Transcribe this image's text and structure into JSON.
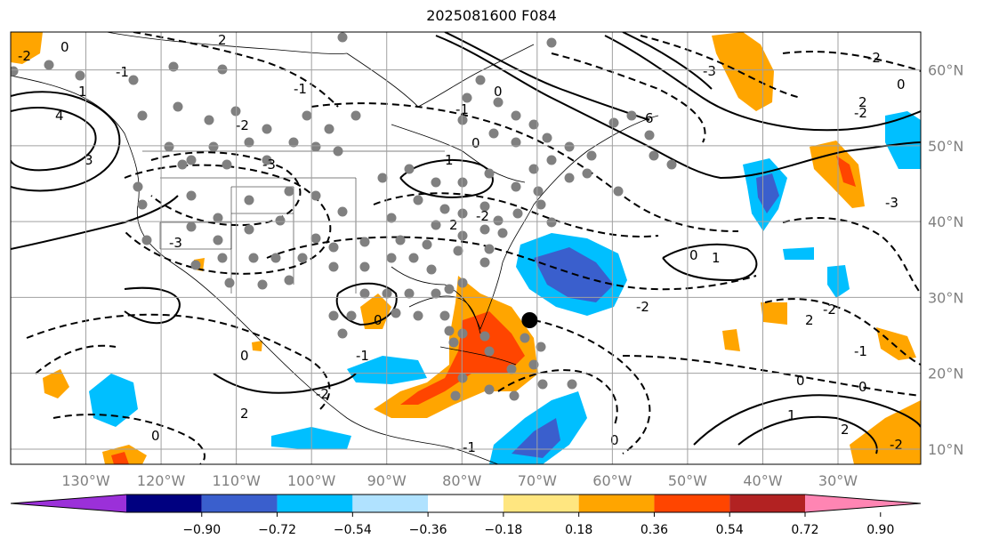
{
  "title": "2025081600 F084",
  "map": {
    "lon_range": [
      -140,
      -19
    ],
    "lat_range": [
      8,
      65
    ],
    "lon_ticks": [
      -130,
      -120,
      -110,
      -100,
      -90,
      -80,
      -70,
      -60,
      -50,
      -40,
      -30
    ],
    "lon_labels": [
      "130°W",
      "120°W",
      "110°W",
      "100°W",
      "90°W",
      "80°W",
      "70°W",
      "60°W",
      "50°W",
      "40°W",
      "30°W"
    ],
    "lat_ticks": [
      10,
      20,
      30,
      40,
      50,
      60
    ],
    "lat_labels": [
      "10°N",
      "20°N",
      "30°N",
      "40°N",
      "50°N",
      "60°N"
    ],
    "grid": true,
    "storm_marker": {
      "lon": -71,
      "lat": 27
    }
  },
  "colorbar": {
    "tick_labels": [
      "−0.90",
      "−0.72",
      "−0.54",
      "−0.36",
      "−0.18",
      "0.18",
      "0.36",
      "0.54",
      "0.72",
      "0.90"
    ],
    "colors": [
      "#9b30d9",
      "#000080",
      "#3a5fcd",
      "#00bfff",
      "#b0e2ff",
      "#ffffff",
      "#ffe680",
      "#ffa500",
      "#ff4500",
      "#b22222",
      "#ff85b3"
    ]
  },
  "contour_labels": [
    "-2",
    "2",
    "-1",
    "0",
    "1",
    "-3",
    "3",
    "-2",
    "0",
    "-1",
    "6",
    "-2",
    "-3",
    "0",
    "-3",
    "-2",
    "2",
    "-2",
    "0",
    "1",
    "-2",
    "0",
    "-1",
    "0",
    "1",
    "-1",
    "0",
    "2",
    "-2",
    "2",
    "0",
    "2",
    "-2",
    "0",
    "-2",
    "-3",
    "0",
    "1",
    "2",
    "-1",
    "0",
    "-1",
    "4"
  ]
}
